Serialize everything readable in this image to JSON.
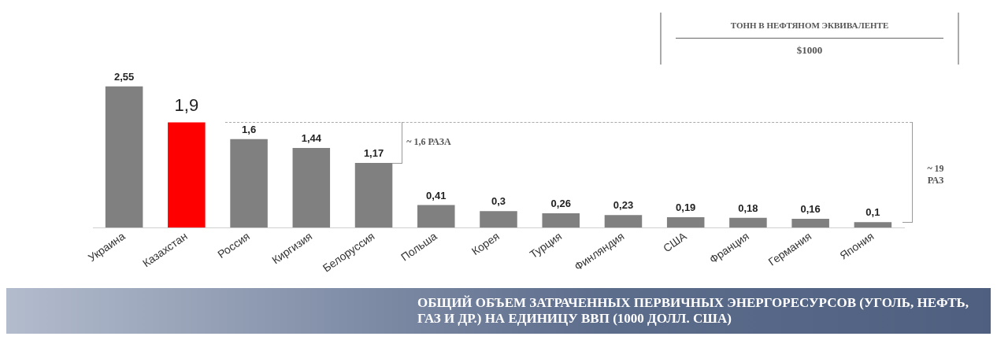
{
  "chart_data": {
    "type": "bar",
    "title": "ОБЩИЙ ОБЪЕМ ЗАТРАЧЕННЫХ ПЕРВИЧНЫХ ЭНЕРГОРЕСУРСОВ (УГОЛЬ, НЕФТЬ, ГАЗ  И ДР.) НА ЕДИНИЦУ ВВП (1000 ДОЛЛ. США)",
    "categories": [
      "Украина",
      "Казахстан",
      "Россия",
      "Киргизия",
      "Белоруссия",
      "Польша",
      "Корея",
      "Турция",
      "Финляндия",
      "США",
      "Франция",
      "Германия",
      "Япония"
    ],
    "values": [
      2.55,
      1.9,
      1.6,
      1.44,
      1.17,
      0.41,
      0.3,
      0.26,
      0.23,
      0.19,
      0.18,
      0.16,
      0.1
    ],
    "value_labels": [
      "2,55",
      "1,9",
      "1,6",
      "1,44",
      "1,17",
      "0,41",
      "0,3",
      "0,26",
      "0,23",
      "0,19",
      "0,18",
      "0,16",
      "0,1"
    ],
    "colors": [
      "#808080",
      "#ff0000",
      "#808080",
      "#808080",
      "#808080",
      "#808080",
      "#808080",
      "#808080",
      "#808080",
      "#808080",
      "#808080",
      "#808080",
      "#808080"
    ],
    "tick_labels": "x",
    "legend": false,
    "ref_lines": [
      {
        "axis": "y",
        "value": 1.9,
        "color": "#aaaaaa",
        "line_style": "dashed"
      }
    ],
    "annotations": [
      "ТОНН В НЕФТЯНОМ ЭКВИВАЛЕНТЕ",
      "$1000",
      "~ 1,6 РАЗА",
      "~ 19 РАЗ"
    ]
  }
}
